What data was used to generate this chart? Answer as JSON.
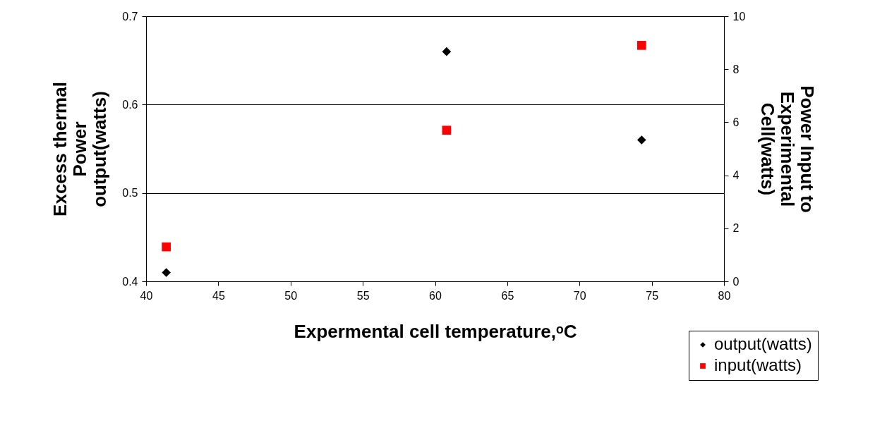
{
  "chart_data": {
    "type": "scatter",
    "xlabel": "Expermental cell temperature,ᵒC",
    "ylabel": "Excess thermal\nPower\noutput(watts)",
    "y2label": "Power Input to\nExperimental\nCell(watts)",
    "x": [
      41.4,
      60.8,
      74.3
    ],
    "series": [
      {
        "name": "output(watts)",
        "color": "#000000",
        "marker": "diamond",
        "values": [
          0.41,
          0.66,
          0.56
        ]
      },
      {
        "name": "input(watts)",
        "color": "#ff0000",
        "marker": "square",
        "axis": "y2",
        "values": [
          1.3,
          5.7,
          8.9
        ]
      }
    ],
    "xlim": [
      40,
      80
    ],
    "xticks": [
      40,
      45,
      50,
      55,
      60,
      65,
      70,
      75,
      80
    ],
    "ylim": [
      0.4,
      0.7
    ],
    "yticks": [
      0.4,
      0.5,
      0.6,
      0.7
    ],
    "y2lim": [
      0,
      10
    ],
    "y2ticks": [
      0,
      2,
      4,
      6,
      8,
      10
    ],
    "grid": "y",
    "legend": "bottom right"
  }
}
